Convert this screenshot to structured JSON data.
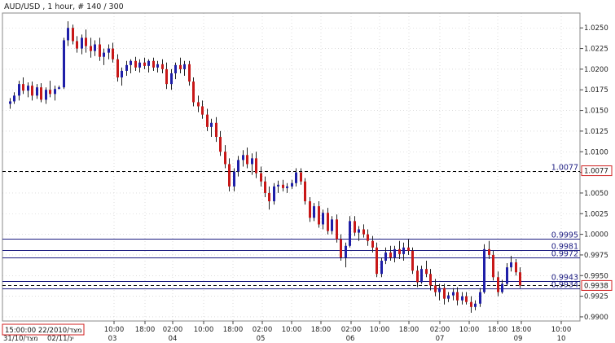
{
  "chart_data": {
    "type": "candlestick",
    "title": "AUD/USD , 1 hour, # 140 / 300",
    "y_range": [
      0.9895,
      1.0268
    ],
    "y_ticks": [
      "1.0250",
      "1.0225",
      "1.0200",
      "1.0175",
      "1.0150",
      "1.0125",
      "1.0100",
      "1.0075",
      "1.0050",
      "1.0025",
      "1.0000",
      "0.9975",
      "0.9950",
      "0.9925",
      "0.9900"
    ],
    "x_ticks_top": [
      "10:00",
      "18:00",
      "02:00",
      "10:00",
      "18:00",
      "02:00",
      "10:00",
      "18:00",
      "02:00",
      "10:00",
      "18:00",
      "02:00",
      "10:00",
      "18:00",
      "18:00",
      "02:00",
      "10:00"
    ],
    "x_ticks_bottom": [
      "31/10/מצד",
      "02/11/ינ",
      "03",
      "04",
      "05",
      "06",
      "07",
      "09",
      "10"
    ],
    "crosshair_time": "15:00:00 22/2010/מצד",
    "current_price": "0.9938",
    "levels": [
      {
        "label": "1.0077",
        "value": 1.0077,
        "style": "dashed",
        "color": "#000000"
      },
      {
        "label": "0.9995",
        "value": 0.9995,
        "style": "solid",
        "color": "#1a1a80"
      },
      {
        "label": "0.9981",
        "value": 0.9981,
        "style": "solid",
        "color": "#1a1a80"
      },
      {
        "label": "0.9972",
        "value": 0.9972,
        "style": "solid",
        "color": "#1a1a80"
      },
      {
        "label": "0.9943",
        "value": 0.9943,
        "style": "solid",
        "color": "#1a1a80"
      },
      {
        "label": "0.9934",
        "value": 0.9934,
        "style": "solid",
        "color": "#1a1a80"
      },
      {
        "label": "",
        "value": 0.9938,
        "style": "dashed",
        "color": "#000000"
      }
    ],
    "bull_color": "#1f1fa8",
    "bear_color": "#c81818",
    "candles": [
      [
        1.0158,
        1.0165,
        1.0152,
        1.0161
      ],
      [
        1.0161,
        1.0172,
        1.0158,
        1.0168
      ],
      [
        1.0168,
        1.0186,
        1.0162,
        1.0182
      ],
      [
        1.0182,
        1.019,
        1.017,
        1.0174
      ],
      [
        1.0174,
        1.0184,
        1.0166,
        1.018
      ],
      [
        1.018,
        1.0185,
        1.0162,
        1.0168
      ],
      [
        1.0168,
        1.0182,
        1.0164,
        1.0178
      ],
      [
        1.0178,
        1.0183,
        1.016,
        1.0163
      ],
      [
        1.0163,
        1.0178,
        1.0158,
        1.0175
      ],
      [
        1.0175,
        1.0186,
        1.0166,
        1.017
      ],
      [
        1.017,
        1.018,
        1.0162,
        1.0176
      ],
      [
        1.0176,
        1.018,
        1.0176,
        1.0178
      ],
      [
        1.0178,
        1.0238,
        1.0176,
        1.0235
      ],
      [
        1.0235,
        1.0258,
        1.0228,
        1.025
      ],
      [
        1.025,
        1.0254,
        1.023,
        1.0234
      ],
      [
        1.0234,
        1.024,
        1.022,
        1.0225
      ],
      [
        1.0225,
        1.0242,
        1.0218,
        1.0238
      ],
      [
        1.0238,
        1.0248,
        1.022,
        1.0228
      ],
      [
        1.0228,
        1.0238,
        1.0214,
        1.0222
      ],
      [
        1.0222,
        1.0235,
        1.0216,
        1.023
      ],
      [
        1.023,
        1.0238,
        1.021,
        1.0215
      ],
      [
        1.0215,
        1.0225,
        1.0205,
        1.022
      ],
      [
        1.022,
        1.023,
        1.0212,
        1.0225
      ],
      [
        1.0225,
        1.0232,
        1.0208,
        1.0212
      ],
      [
        1.0212,
        1.0218,
        1.0185,
        1.019
      ],
      [
        1.019,
        1.0202,
        1.018,
        1.0198
      ],
      [
        1.0198,
        1.021,
        1.0192,
        1.0205
      ],
      [
        1.0205,
        1.0212,
        1.0195,
        1.021
      ],
      [
        1.021,
        1.0215,
        1.0198,
        1.0202
      ],
      [
        1.0202,
        1.0212,
        1.0196,
        1.0208
      ],
      [
        1.0208,
        1.0214,
        1.02,
        1.0204
      ],
      [
        1.0204,
        1.0212,
        1.0196,
        1.021
      ],
      [
        1.021,
        1.0214,
        1.0198,
        1.0202
      ],
      [
        1.0202,
        1.021,
        1.0196,
        1.0206
      ],
      [
        1.0206,
        1.0212,
        1.0195,
        1.02
      ],
      [
        1.02,
        1.0208,
        1.0176,
        1.0182
      ],
      [
        1.0182,
        1.02,
        1.0175,
        1.0195
      ],
      [
        1.0195,
        1.0208,
        1.0188,
        1.0205
      ],
      [
        1.0205,
        1.0214,
        1.0195,
        1.02
      ],
      [
        1.02,
        1.021,
        1.0192,
        1.0206
      ],
      [
        1.0206,
        1.021,
        1.018,
        1.0185
      ],
      [
        1.0185,
        1.019,
        1.0155,
        1.016
      ],
      [
        1.016,
        1.0168,
        1.0148,
        1.0155
      ],
      [
        1.0155,
        1.0162,
        1.014,
        1.0145
      ],
      [
        1.0145,
        1.0152,
        1.0125,
        1.013
      ],
      [
        1.013,
        1.014,
        1.0118,
        1.0135
      ],
      [
        1.0135,
        1.0142,
        1.0112,
        1.0118
      ],
      [
        1.0118,
        1.0125,
        1.0095,
        1.01
      ],
      [
        1.01,
        1.0108,
        1.008,
        1.0085
      ],
      [
        1.0085,
        1.0092,
        1.0052,
        1.0058
      ],
      [
        1.0058,
        1.008,
        1.0052,
        1.0076
      ],
      [
        1.0076,
        1.0095,
        1.007,
        1.009
      ],
      [
        1.009,
        1.0102,
        1.0082,
        1.0096
      ],
      [
        1.0096,
        1.0105,
        1.008,
        1.0085
      ],
      [
        1.0085,
        1.0098,
        1.0072,
        1.0092
      ],
      [
        1.0092,
        1.01,
        1.0068,
        1.0074
      ],
      [
        1.0074,
        1.0082,
        1.0058,
        1.0064
      ],
      [
        1.0064,
        1.007,
        1.0045,
        1.005
      ],
      [
        1.005,
        1.0058,
        1.003,
        1.004
      ],
      [
        1.004,
        1.0062,
        1.0036,
        1.0058
      ],
      [
        1.0058,
        1.0065,
        1.005,
        1.006
      ],
      [
        1.006,
        1.0066,
        1.0052,
        1.0056
      ],
      [
        1.0056,
        1.0062,
        1.005,
        1.0058
      ],
      [
        1.0058,
        1.0066,
        1.0055,
        1.0062
      ],
      [
        1.0062,
        1.008,
        1.0058,
        1.0075
      ],
      [
        1.0075,
        1.008,
        1.006,
        1.0064
      ],
      [
        1.0064,
        1.0068,
        1.0036,
        1.004
      ],
      [
        1.004,
        1.0045,
        1.0015,
        1.002
      ],
      [
        1.002,
        1.0038,
        1.0016,
        1.0034
      ],
      [
        1.0034,
        1.004,
        1.0008,
        1.0012
      ],
      [
        1.0012,
        1.003,
        1.0006,
        1.0026
      ],
      [
        1.0026,
        1.0032,
        1.0,
        1.0004
      ],
      [
        1.0004,
        1.0022,
        1.0,
        1.0018
      ],
      [
        1.0018,
        1.0024,
        0.999,
        0.9994
      ],
      [
        0.9994,
        1.0,
        0.9968,
        0.9972
      ],
      [
        0.9972,
        0.999,
        0.996,
        0.9986
      ],
      [
        0.9986,
        1.0022,
        0.9984,
        1.0016
      ],
      [
        1.0016,
        1.0022,
        0.9998,
        1.0002
      ],
      [
        1.0002,
        1.001,
        0.9992,
        1.0006
      ],
      [
        1.0006,
        1.0012,
        0.9996,
        1.0
      ],
      [
        1.0,
        1.0006,
        0.9986,
        0.9992
      ],
      [
        0.9992,
        0.9998,
        0.9978,
        0.9984
      ],
      [
        0.9984,
        0.999,
        0.9948,
        0.9952
      ],
      [
        0.9952,
        0.9972,
        0.9948,
        0.9968
      ],
      [
        0.9968,
        0.9984,
        0.9964,
        0.9978
      ],
      [
        0.9978,
        0.9986,
        0.9968,
        0.9972
      ],
      [
        0.9972,
        0.9986,
        0.9966,
        0.9982
      ],
      [
        0.9982,
        0.9992,
        0.997,
        0.9976
      ],
      [
        0.9976,
        0.999,
        0.9968,
        0.9984
      ],
      [
        0.9984,
        0.9994,
        0.9975,
        0.998
      ],
      [
        0.998,
        0.9984,
        0.9952,
        0.9956
      ],
      [
        0.9956,
        0.9962,
        0.9936,
        0.9942
      ],
      [
        0.9942,
        0.9962,
        0.994,
        0.9958
      ],
      [
        0.9958,
        0.9968,
        0.9948,
        0.9952
      ],
      [
        0.9952,
        0.9958,
        0.9932,
        0.9938
      ],
      [
        0.9938,
        0.9946,
        0.9925,
        0.993
      ],
      [
        0.993,
        0.994,
        0.992,
        0.9935
      ],
      [
        0.9935,
        0.994,
        0.9915,
        0.9922
      ],
      [
        0.9922,
        0.993,
        0.9918,
        0.9926
      ],
      [
        0.9926,
        0.9935,
        0.992,
        0.993
      ],
      [
        0.993,
        0.9936,
        0.9914,
        0.992
      ],
      [
        0.992,
        0.993,
        0.9915,
        0.9925
      ],
      [
        0.9925,
        0.993,
        0.9915,
        0.9918
      ],
      [
        0.9918,
        0.9925,
        0.9905,
        0.9912
      ],
      [
        0.9912,
        0.992,
        0.9908,
        0.9916
      ],
      [
        0.9916,
        0.9935,
        0.9912,
        0.993
      ],
      [
        0.993,
        0.9988,
        0.9928,
        0.9982
      ],
      [
        0.9982,
        0.9992,
        0.997,
        0.9975
      ],
      [
        0.9975,
        0.998,
        0.9944,
        0.9948
      ],
      [
        0.9948,
        0.9955,
        0.9925,
        0.993
      ],
      [
        0.993,
        0.9945,
        0.9928,
        0.994
      ],
      [
        0.994,
        0.9965,
        0.9938,
        0.996
      ],
      [
        0.996,
        0.9974,
        0.9955,
        0.9966
      ],
      [
        0.9966,
        0.997,
        0.995,
        0.9954
      ],
      [
        0.9954,
        0.996,
        0.9935,
        0.9938
      ]
    ]
  }
}
